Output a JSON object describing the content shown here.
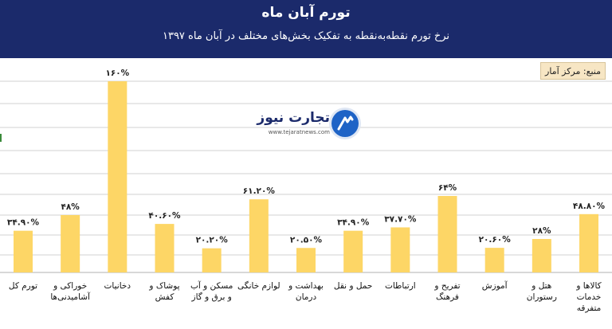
{
  "title": "تورم آبان ماه",
  "subtitle": "نرخ تورم نقطه‌به‌نقطه به تفکیک بخش‌های مختلف در آبان ماه ۱۳۹۷",
  "source": "منبع: مرکز آمار",
  "logo": {
    "text": "تجارت نیوز",
    "url": "www.tejaratnews.com",
    "icon": "tejarat-news-logo-icon"
  },
  "colors": {
    "header": "#1b2a6b",
    "bar": "#fdd666",
    "grid": "#d0d0d0"
  },
  "chart_data": {
    "type": "bar",
    "title": "تورم آبان ماه",
    "subtitle": "نرخ تورم نقطه‌به‌نقطه به تفکیک بخش‌های مختلف در آبان ماه ۱۳۹۷",
    "categories": [
      "تورم کل",
      "خوراکی و آشامیدنی‌ها",
      "دخانیات",
      "پوشاک و کفش",
      "مسکن و آب و برق و گاز",
      "لوازم خانگی",
      "بهداشت و درمان",
      "حمل و نقل",
      "ارتباطات",
      "تفریح و فرهنگ",
      "آموزش",
      "هتل و رستوران",
      "کالاها و خدمات متفرقه"
    ],
    "values": [
      34.9,
      48,
      160,
      40.6,
      20.2,
      61.2,
      20.5,
      34.9,
      37.7,
      64,
      20.6,
      28,
      48.8
    ],
    "labels": [
      "۳۴.۹۰%",
      "۴۸%",
      "۱۶۰%",
      "۴۰.۶۰%",
      "۲۰.۲۰%",
      "۶۱.۲۰%",
      "۲۰.۵۰%",
      "۳۴.۹۰%",
      "۳۷.۷۰%",
      "۶۴%",
      "۲۰.۶۰%",
      "۲۸%",
      "۴۸.۸۰%"
    ],
    "ylim": [
      0,
      160
    ],
    "grid": true,
    "legend": "none"
  }
}
